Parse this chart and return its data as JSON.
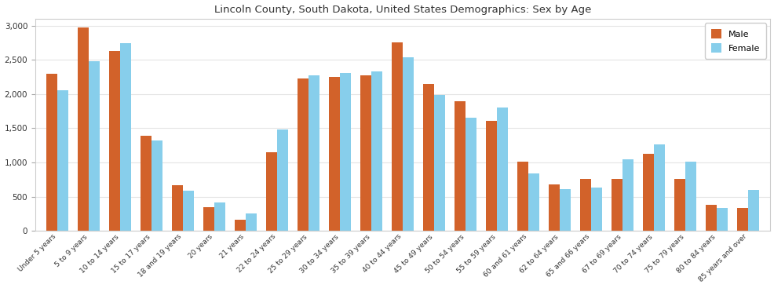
{
  "title": "Lincoln County, South Dakota, United States Demographics: Sex by Age",
  "categories": [
    "Under 5 years",
    "5 to 9 years",
    "10 to 14 years",
    "15 to 17 years",
    "18 and 19 years",
    "20 years",
    "21 years",
    "22 to 24 years",
    "25 to 29 years",
    "30 to 34 years",
    "35 to 39 years",
    "40 to 44 years",
    "45 to 49 years",
    "50 to 54 years",
    "55 to 59 years",
    "60 and 61 years",
    "62 to 64 years",
    "65 and 66 years",
    "67 to 69 years",
    "70 to 74 years",
    "75 to 79 years",
    "80 to 84 years",
    "85 years and over"
  ],
  "male": [
    2300,
    2970,
    2630,
    1390,
    670,
    350,
    165,
    1150,
    2225,
    2250,
    2275,
    2750,
    2150,
    1900,
    1610,
    1010,
    680,
    755,
    760,
    1130,
    760,
    375,
    330
  ],
  "female": [
    2050,
    2480,
    2740,
    1320,
    590,
    410,
    250,
    1480,
    2270,
    2305,
    2335,
    2540,
    1985,
    1650,
    1800,
    840,
    615,
    630,
    1050,
    1260,
    1010,
    340,
    600
  ],
  "male_color": "#d2622a",
  "female_color": "#87ceeb",
  "bar_width": 0.35,
  "ylim": [
    0,
    3100
  ],
  "yticks": [
    0,
    500,
    1000,
    1500,
    2000,
    2500,
    3000
  ],
  "legend_labels": [
    "Male",
    "Female"
  ],
  "figsize": [
    9.87,
    3.67
  ],
  "dpi": 100
}
